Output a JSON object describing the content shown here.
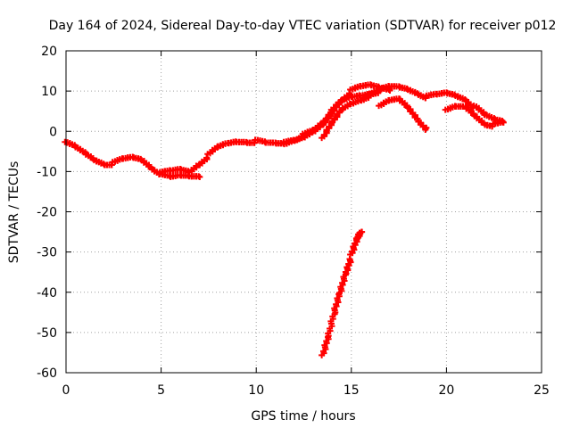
{
  "chart_data": {
    "type": "scatter",
    "title": "Day 164 of 2024, Sidereal Day-to-day VTEC variation (SDTVAR) for receiver p012",
    "xlabel": "GPS time / hours",
    "ylabel": "SDTVAR / TECUs",
    "xlim": [
      0,
      25
    ],
    "ylim": [
      -60,
      20
    ],
    "xticks": [
      0,
      5,
      10,
      15,
      20,
      25
    ],
    "yticks": [
      -60,
      -50,
      -40,
      -30,
      -20,
      -10,
      0,
      10,
      20
    ],
    "grid": true,
    "marker": "plus",
    "color": "#ff0000",
    "series": [
      {
        "name": "track-a",
        "x": [
          0.0,
          0.5,
          1.0,
          1.5,
          2.0,
          2.5,
          3.0,
          3.5,
          4.0,
          4.5,
          5.0,
          5.5,
          6.0,
          6.5,
          7.0,
          7.5,
          8.0,
          8.5,
          9.0,
          9.5,
          10.0,
          10.5,
          11.0,
          11.5,
          12.0,
          12.5,
          13.0,
          13.5,
          14.0,
          14.5,
          15.0,
          15.5,
          16.0,
          16.5,
          17.0
        ],
        "y": [
          -3,
          -4,
          -5.5,
          -7,
          -8,
          -8,
          -7,
          -6.5,
          -7,
          -9,
          -10.5,
          -10,
          -9.5,
          -10,
          -8,
          -6,
          -4,
          -3,
          -2.5,
          -2.5,
          -2.5,
          -3,
          -3,
          -3,
          -2,
          -1,
          0,
          2,
          5,
          8,
          10,
          11,
          11.5,
          11,
          10.5
        ]
      },
      {
        "name": "track-b",
        "x": [
          5.0,
          5.5,
          6.0,
          6.5,
          7.0
        ],
        "y": [
          -11,
          -11.5,
          -11,
          -11,
          -11
        ]
      },
      {
        "name": "track-c",
        "x": [
          11.5,
          12.0,
          12.5,
          13.0,
          13.5,
          14.0,
          14.5,
          15.0,
          15.5,
          16.0,
          16.5,
          17.0,
          17.5,
          18.0,
          18.5,
          19.0,
          19.5,
          20.0,
          20.5,
          21.0,
          21.5,
          22.0,
          22.5,
          23.0
        ],
        "y": [
          -3,
          -2.5,
          -1.5,
          0,
          2,
          5,
          7.5,
          8.5,
          9,
          9.5,
          10,
          11,
          11,
          10.5,
          9.5,
          8.5,
          9,
          9.5,
          9,
          8,
          6,
          4,
          3,
          2.5
        ]
      },
      {
        "name": "track-d",
        "x": [
          13.5,
          14.0,
          14.5,
          15.0,
          15.5,
          16.0,
          16.5
        ],
        "y": [
          -2,
          2,
          5.5,
          7,
          8,
          9,
          10
        ]
      },
      {
        "name": "track-e",
        "x": [
          16.5,
          17.0,
          17.5,
          18.0,
          18.5,
          19.0
        ],
        "y": [
          6,
          7.5,
          8,
          6,
          3,
          0.5
        ]
      },
      {
        "name": "track-f",
        "x": [
          20.0,
          20.5,
          21.0,
          21.5,
          22.0,
          22.5,
          23.0
        ],
        "y": [
          5,
          6,
          6,
          4,
          2,
          1.5,
          2
        ]
      },
      {
        "name": "track-g",
        "x": [
          13.5,
          13.8,
          14.1,
          14.4,
          14.7,
          15.0,
          15.3,
          15.5
        ],
        "y": [
          -56,
          -51,
          -45,
          -40,
          -35,
          -31,
          -27,
          -25
        ]
      }
    ]
  }
}
